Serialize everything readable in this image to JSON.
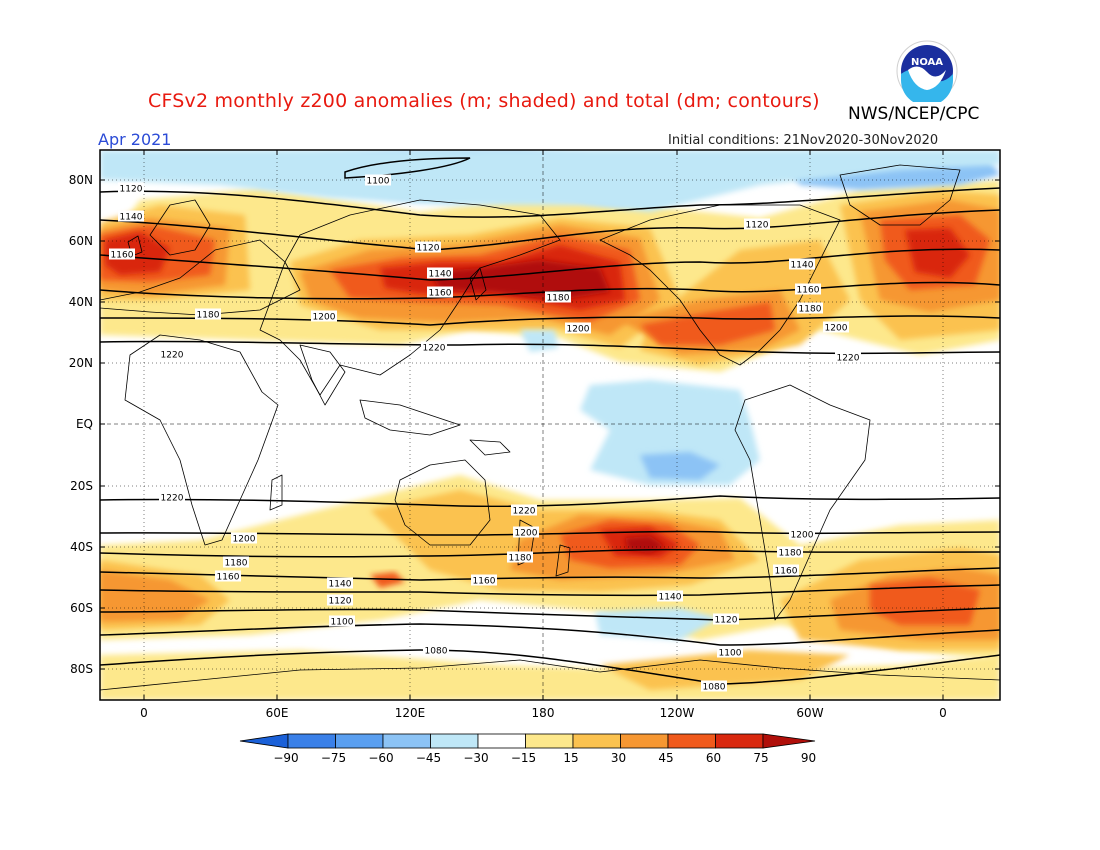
{
  "header": {
    "title": "CFSv2 monthly z200 anomalies (m; shaded) and total (dm; contours)",
    "agency": "NWS/NCEP/CPC",
    "month": "Apr 2021",
    "initial_conditions": "Initial conditions: 21Nov2020-30Nov2020",
    "logo_text": "NOAA"
  },
  "map": {
    "lat_labels": [
      "80N",
      "60N",
      "40N",
      "20N",
      "EQ",
      "20S",
      "40S",
      "60S",
      "80S"
    ],
    "lon_labels": [
      "0",
      "60E",
      "120E",
      "180",
      "120W",
      "60W",
      "0"
    ]
  },
  "colorbar": {
    "levels": [
      "-90",
      "-75",
      "-60",
      "-45",
      "-30",
      "-15",
      "15",
      "30",
      "45",
      "60",
      "75",
      "90"
    ],
    "colors": [
      "#1a60d8",
      "#3a80e8",
      "#5a9ff0",
      "#8cc3f5",
      "#bfe7f7",
      "#ffffff",
      "#fde88c",
      "#fbc24f",
      "#f69732",
      "#f05a1c",
      "#d9280f",
      "#b00f0a"
    ]
  },
  "contour_labels": [
    {
      "text": "1100"
    },
    {
      "text": "1120"
    },
    {
      "text": "1140"
    },
    {
      "text": "1160"
    },
    {
      "text": "1120"
    },
    {
      "text": "1140"
    },
    {
      "text": "1160"
    },
    {
      "text": "1180"
    },
    {
      "text": "1120"
    },
    {
      "text": "1140"
    },
    {
      "text": "1160"
    },
    {
      "text": "1180"
    },
    {
      "text": "1200"
    },
    {
      "text": "1200"
    },
    {
      "text": "1180"
    },
    {
      "text": "1200"
    },
    {
      "text": "1220"
    },
    {
      "text": "1220"
    },
    {
      "text": "1220"
    },
    {
      "text": "1220"
    },
    {
      "text": "1220"
    },
    {
      "text": "1200"
    },
    {
      "text": "1200"
    },
    {
      "text": "1200"
    },
    {
      "text": "1180"
    },
    {
      "text": "1180"
    },
    {
      "text": "1180"
    },
    {
      "text": "1160"
    },
    {
      "text": "1160"
    },
    {
      "text": "1160"
    },
    {
      "text": "1140"
    },
    {
      "text": "1140"
    },
    {
      "text": "1120"
    },
    {
      "text": "1120"
    },
    {
      "text": "1100"
    },
    {
      "text": "1100"
    },
    {
      "text": "1080"
    },
    {
      "text": "1080"
    }
  ]
}
